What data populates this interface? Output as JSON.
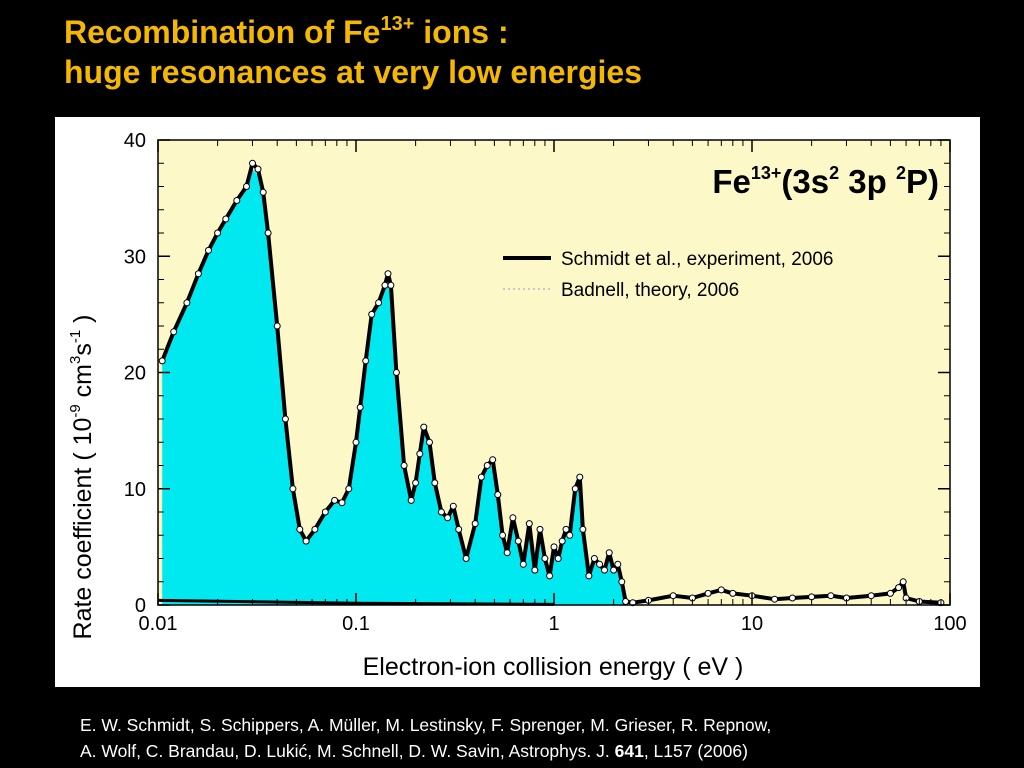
{
  "slide": {
    "title_line1_prefix": "Recombination of Fe",
    "title_line1_sup": "13+",
    "title_line1_suffix": " ions :",
    "title_line2": "huge resonances at very low energies",
    "title_color": "#f5b800",
    "background_color": "#000000"
  },
  "citation": {
    "line1": "E. W. Schmidt, S. Schippers, A. Müller, M. Lestinsky, F. Sprenger, M. Grieser, R. Repnow,",
    "line2_prefix": "A. Wolf, C. Brandau, D. Lukić, M. Schnell, D. W. Savin, Astrophys. J. ",
    "line2_bold": "641",
    "line2_suffix": ", L157 (2006)"
  },
  "chart_data": {
    "type": "line",
    "xscale": "log",
    "xlim": [
      0.01,
      100
    ],
    "ylim": [
      0,
      40
    ],
    "xticks": [
      0.01,
      0.1,
      1,
      10,
      100
    ],
    "xtick_labels": [
      "0.01",
      "0.1",
      "1",
      "10",
      "100"
    ],
    "yticks": [
      0,
      10,
      20,
      30,
      40
    ],
    "ytick_labels": [
      "0",
      "10",
      "20",
      "30",
      "40"
    ],
    "xlabel": "Electron-ion collision energy  ( eV )",
    "ylabel": {
      "prefix": "Rate coefficient  ( 10",
      "exp1": "-9",
      "mid1": " cm",
      "exp2": "3",
      "mid2": "s",
      "exp3": "-1",
      "suffix": " )"
    },
    "annotation": {
      "base": "Fe",
      "sup1": "13+",
      "mid1": "(3s",
      "sup2": "2",
      "mid2": " 3p  ",
      "sup3": "2",
      "suffix": "P)"
    },
    "plot_background": "#fdf8c8",
    "fill_color": "#00e8f0",
    "series": [
      {
        "name": "Schmidt et al., experiment, 2006",
        "style": "thick black line with white circle markers",
        "color": "#000000",
        "x": [
          0.0105,
          0.012,
          0.014,
          0.016,
          0.018,
          0.02,
          0.022,
          0.025,
          0.028,
          0.03,
          0.032,
          0.034,
          0.036,
          0.04,
          0.044,
          0.048,
          0.052,
          0.056,
          0.062,
          0.07,
          0.078,
          0.085,
          0.092,
          0.1,
          0.105,
          0.112,
          0.12,
          0.13,
          0.14,
          0.145,
          0.15,
          0.16,
          0.175,
          0.19,
          0.2,
          0.21,
          0.22,
          0.235,
          0.25,
          0.27,
          0.29,
          0.31,
          0.33,
          0.36,
          0.4,
          0.43,
          0.46,
          0.49,
          0.52,
          0.55,
          0.58,
          0.62,
          0.66,
          0.7,
          0.75,
          0.8,
          0.85,
          0.9,
          0.95,
          1.0,
          1.05,
          1.1,
          1.15,
          1.2,
          1.28,
          1.35,
          1.4,
          1.5,
          1.6,
          1.7,
          1.8,
          1.9,
          2.0,
          2.1,
          2.2,
          2.3,
          2.5,
          3.0,
          4.0,
          5.0,
          6.0,
          7.0,
          8.0,
          10.0,
          13.0,
          16.0,
          20.0,
          25.0,
          30.0,
          40.0,
          50.0,
          55.0,
          58.0,
          60.0,
          70.0,
          90.0
        ],
        "y": [
          21.0,
          23.5,
          26.0,
          28.5,
          30.5,
          32.0,
          33.2,
          34.8,
          36.0,
          38.0,
          37.5,
          35.5,
          32.0,
          24.0,
          16.0,
          10.0,
          6.5,
          5.5,
          6.5,
          8.0,
          9.0,
          8.8,
          10.0,
          14.0,
          17.0,
          21.0,
          25.0,
          26.0,
          27.5,
          28.5,
          27.5,
          20.0,
          12.0,
          9.0,
          10.5,
          13.0,
          15.3,
          14.0,
          10.5,
          8.0,
          7.5,
          8.5,
          6.5,
          4.0,
          7.0,
          11.0,
          12.0,
          12.5,
          9.5,
          6.0,
          4.5,
          7.5,
          5.5,
          3.5,
          7.0,
          3.0,
          6.5,
          4.0,
          2.5,
          5.0,
          4.0,
          5.5,
          6.5,
          6.0,
          10.0,
          11.0,
          6.5,
          2.5,
          4.0,
          3.5,
          3.0,
          4.5,
          3.0,
          3.5,
          2.0,
          0.3,
          0.2,
          0.4,
          0.8,
          0.6,
          1.0,
          1.3,
          1.0,
          0.8,
          0.5,
          0.6,
          0.7,
          0.8,
          0.6,
          0.8,
          1.0,
          1.5,
          2.0,
          0.6,
          0.3,
          0.2
        ]
      },
      {
        "name": "Badnell, theory, 2006",
        "style": "dotted line, filled cyan area beneath",
        "color": "#c8c8c8",
        "x": [
          0.0105,
          0.012,
          0.014,
          0.016,
          0.018,
          0.02,
          0.022,
          0.025,
          0.028,
          0.03,
          0.032,
          0.034,
          0.036,
          0.04,
          0.044,
          0.048,
          0.052,
          0.056,
          0.062,
          0.07,
          0.078,
          0.085,
          0.092,
          0.1,
          0.105,
          0.112,
          0.12,
          0.13,
          0.14,
          0.145,
          0.15,
          0.16,
          0.175,
          0.19,
          0.2,
          0.21,
          0.22,
          0.235,
          0.25,
          0.27,
          0.29,
          0.31,
          0.33,
          0.36,
          0.4,
          0.43,
          0.46,
          0.49,
          0.52,
          0.55,
          0.58,
          0.62,
          0.66,
          0.7,
          0.75,
          0.8,
          0.85,
          0.9,
          0.95,
          1.0,
          1.05,
          1.1,
          1.15,
          1.2,
          1.28,
          1.35,
          1.4,
          1.5,
          1.6,
          1.7,
          1.8,
          1.9,
          2.0,
          2.1,
          2.2,
          2.3
        ],
        "y": [
          21.0,
          23.5,
          26.0,
          28.5,
          30.5,
          32.0,
          33.0,
          34.5,
          35.8,
          37.5,
          37.0,
          35.0,
          31.5,
          23.5,
          15.5,
          9.8,
          6.3,
          5.4,
          6.3,
          7.8,
          8.8,
          8.6,
          9.8,
          13.8,
          16.8,
          20.8,
          24.8,
          25.8,
          27.3,
          28.0,
          27.0,
          19.5,
          11.8,
          8.8,
          10.3,
          12.8,
          14.8,
          13.8,
          10.3,
          7.8,
          7.3,
          8.3,
          6.3,
          3.8,
          6.8,
          10.8,
          11.8,
          12.0,
          9.3,
          5.8,
          4.3,
          7.3,
          5.3,
          3.3,
          6.8,
          2.8,
          6.3,
          3.8,
          2.3,
          4.8,
          3.8,
          5.3,
          6.3,
          5.8,
          9.8,
          10.5,
          6.3,
          2.3,
          3.8,
          3.3,
          2.8,
          4.3,
          2.8,
          3.3,
          1.8,
          0.0
        ]
      }
    ],
    "legend_position": "upper-right",
    "grid": false
  }
}
